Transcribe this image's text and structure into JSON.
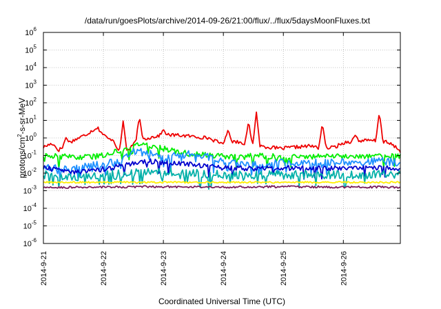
{
  "chart_data": {
    "type": "line",
    "title": "/data/run/goesPlots/archive/2014-09-26/21:00/flux/../flux/5daysMoonFluxes.txt",
    "xlabel": "Coordinated Universal Time (UTC)",
    "ylabel_base": "protons/cm",
    "ylabel_sup": "2",
    "ylabel_rest": "-s-sr-MeV",
    "y_scale": "log",
    "ylim_exp": [
      -6,
      6
    ],
    "y_ticks": [
      {
        "exp": -6,
        "base": "10",
        "sup": "-6"
      },
      {
        "exp": -5,
        "base": "10",
        "sup": "-5"
      },
      {
        "exp": -4,
        "base": "10",
        "sup": "-4"
      },
      {
        "exp": -3,
        "base": "10",
        "sup": "-3"
      },
      {
        "exp": -2,
        "base": "10",
        "sup": "-2"
      },
      {
        "exp": -1,
        "base": "10",
        "sup": "-1"
      },
      {
        "exp": 0,
        "base": "10",
        "sup": "0"
      },
      {
        "exp": 1,
        "base": "10",
        "sup": "1"
      },
      {
        "exp": 2,
        "base": "10",
        "sup": "2"
      },
      {
        "exp": 3,
        "base": "10",
        "sup": "3"
      },
      {
        "exp": 4,
        "base": "10",
        "sup": "4"
      },
      {
        "exp": 5,
        "base": "10",
        "sup": "5"
      },
      {
        "exp": 6,
        "base": "10",
        "sup": "6"
      }
    ],
    "xlim_days": [
      0,
      5.95
    ],
    "x_ticks": [
      {
        "day": 0,
        "label": "2014-9-21"
      },
      {
        "day": 1,
        "label": "2014-9-22"
      },
      {
        "day": 2,
        "label": "2014-9-23"
      },
      {
        "day": 3,
        "label": "2014-9-24"
      },
      {
        "day": 4,
        "label": "2014-9-25"
      },
      {
        "day": 5,
        "label": "2014-9-26"
      }
    ],
    "grid": true,
    "series": [
      {
        "color": "#ee0000",
        "noise": 0.1,
        "spike_chance": 0.0,
        "points": [
          [
            0,
            0.3
          ],
          [
            0.15,
            0.5
          ],
          [
            0.25,
            0.2
          ],
          [
            0.45,
            0.6
          ],
          [
            0.7,
            1.5
          ],
          [
            0.9,
            4.0
          ],
          [
            1.0,
            1.5
          ],
          [
            1.15,
            0.6
          ],
          [
            1.3,
            0.15
          ],
          [
            1.45,
            0.25
          ],
          [
            1.55,
            0.7
          ],
          [
            1.75,
            1.0
          ],
          [
            1.9,
            1.3
          ],
          [
            2.05,
            1.5
          ],
          [
            2.3,
            1.4
          ],
          [
            2.5,
            1.2
          ],
          [
            2.75,
            1.0
          ],
          [
            2.95,
            0.5
          ],
          [
            3.05,
            0.7
          ],
          [
            3.25,
            0.6
          ],
          [
            3.5,
            0.4
          ],
          [
            3.75,
            0.3
          ],
          [
            3.95,
            0.25
          ],
          [
            4.2,
            0.3
          ],
          [
            4.45,
            0.35
          ],
          [
            4.65,
            0.25
          ],
          [
            4.85,
            0.3
          ],
          [
            5.05,
            0.6
          ],
          [
            5.3,
            0.7
          ],
          [
            5.5,
            0.7
          ],
          [
            5.7,
            0.6
          ],
          [
            5.85,
            0.35
          ],
          [
            5.95,
            0.18
          ]
        ],
        "spikes": [
          [
            0.38,
            1.1
          ],
          [
            1.15,
            0.8
          ],
          [
            1.33,
            10.0
          ],
          [
            1.6,
            15.0
          ],
          [
            2.0,
            3.0
          ],
          [
            3.08,
            3.0
          ],
          [
            3.42,
            9.0
          ],
          [
            3.55,
            30.0
          ],
          [
            4.65,
            7.0
          ],
          [
            5.2,
            1.5
          ],
          [
            5.6,
            30.0
          ]
        ]
      },
      {
        "color": "#00ee00",
        "noise": 0.16,
        "spike_chance": 0.05,
        "points": [
          [
            0,
            0.1
          ],
          [
            0.5,
            0.08
          ],
          [
            0.9,
            0.09
          ],
          [
            1.05,
            0.12
          ],
          [
            1.3,
            0.2
          ],
          [
            1.6,
            0.45
          ],
          [
            1.85,
            0.35
          ],
          [
            2.1,
            0.2
          ],
          [
            2.45,
            0.12
          ],
          [
            2.8,
            0.1
          ],
          [
            3.2,
            0.08
          ],
          [
            3.6,
            0.1
          ],
          [
            4.0,
            0.08
          ],
          [
            4.5,
            0.09
          ],
          [
            5.0,
            0.09
          ],
          [
            5.5,
            0.1
          ],
          [
            5.95,
            0.09
          ]
        ],
        "spikes": []
      },
      {
        "color": "#1e90ff",
        "noise": 0.22,
        "spike_chance": 0.08,
        "points": [
          [
            0,
            0.02
          ],
          [
            0.5,
            0.02
          ],
          [
            0.9,
            0.03
          ],
          [
            1.2,
            0.04
          ],
          [
            1.5,
            0.2
          ],
          [
            1.8,
            0.12
          ],
          [
            2.0,
            0.06
          ],
          [
            2.4,
            0.15
          ],
          [
            2.7,
            0.1
          ],
          [
            3.0,
            0.04
          ],
          [
            3.5,
            0.03
          ],
          [
            4.0,
            0.04
          ],
          [
            4.5,
            0.04
          ],
          [
            5.0,
            0.04
          ],
          [
            5.5,
            0.05
          ],
          [
            5.95,
            0.04
          ]
        ],
        "spikes": []
      },
      {
        "color": "#0000cd",
        "noise": 0.14,
        "spike_chance": 0.03,
        "points": [
          [
            0,
            0.02
          ],
          [
            0.5,
            0.012
          ],
          [
            0.9,
            0.015
          ],
          [
            1.3,
            0.025
          ],
          [
            1.7,
            0.05
          ],
          [
            2.0,
            0.04
          ],
          [
            2.5,
            0.03
          ],
          [
            3.0,
            0.02
          ],
          [
            3.5,
            0.018
          ],
          [
            4.0,
            0.02
          ],
          [
            4.5,
            0.018
          ],
          [
            5.0,
            0.02
          ],
          [
            5.5,
            0.02
          ],
          [
            5.95,
            0.018
          ]
        ],
        "spikes": []
      },
      {
        "color": "#00b0a8",
        "noise": 0.25,
        "spike_chance": 0.1,
        "points": [
          [
            0,
            0.008
          ],
          [
            0.5,
            0.006
          ],
          [
            1.0,
            0.008
          ],
          [
            1.5,
            0.01
          ],
          [
            2.0,
            0.012
          ],
          [
            2.5,
            0.01
          ],
          [
            3.0,
            0.008
          ],
          [
            3.5,
            0.008
          ],
          [
            4.0,
            0.008
          ],
          [
            4.5,
            0.008
          ],
          [
            5.0,
            0.008
          ],
          [
            5.5,
            0.008
          ],
          [
            5.95,
            0.008
          ]
        ],
        "spikes": []
      },
      {
        "color": "#ffee00",
        "noise": 0.05,
        "spike_chance": 0.0,
        "points": [
          [
            0,
            0.003
          ],
          [
            3.0,
            0.003
          ],
          [
            5.95,
            0.003
          ]
        ],
        "spikes": []
      },
      {
        "color": "#7a1f5c",
        "noise": 0.06,
        "spike_chance": 0.0,
        "points": [
          [
            0,
            0.0015
          ],
          [
            1.0,
            0.0016
          ],
          [
            2.0,
            0.0017
          ],
          [
            3.0,
            0.0016
          ],
          [
            4.0,
            0.0017
          ],
          [
            5.0,
            0.0016
          ],
          [
            5.95,
            0.0016
          ]
        ],
        "spikes": []
      }
    ]
  }
}
